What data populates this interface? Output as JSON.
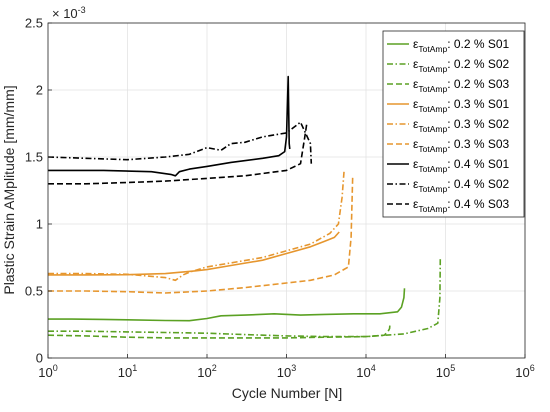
{
  "chart_data": {
    "type": "line",
    "title": "",
    "xlabel": "Cycle Number [N]",
    "ylabel": "Plastic Strain AMplitude [mm/mm]",
    "x_scale": "log",
    "xlim": [
      1,
      1000000
    ],
    "ylim": [
      0,
      0.0025
    ],
    "x_ticks": [
      1,
      10,
      100,
      1000,
      10000,
      100000,
      1000000
    ],
    "x_tick_labels": [
      {
        "base": "10",
        "exp": "0"
      },
      {
        "base": "10",
        "exp": "1"
      },
      {
        "base": "10",
        "exp": "2"
      },
      {
        "base": "10",
        "exp": "3"
      },
      {
        "base": "10",
        "exp": "4"
      },
      {
        "base": "10",
        "exp": "5"
      },
      {
        "base": "10",
        "exp": "6"
      }
    ],
    "y_ticks": [
      0,
      0.0005,
      0.001,
      0.0015,
      0.002,
      0.0025
    ],
    "y_tick_labels": [
      "0",
      "0.5",
      "1",
      "1.5",
      "2",
      "2.5"
    ],
    "y_multiplier": {
      "base": "× 10",
      "exp": "-3"
    },
    "grid": true,
    "legend_position": "top-right",
    "legend_symbol": "ε",
    "legend_subscript": "TotAmp",
    "series": [
      {
        "name": ": 0.2 % S01",
        "color": "#5ba123",
        "dash": "solid",
        "x": [
          1,
          2,
          5,
          10,
          30,
          60,
          100,
          150,
          300,
          700,
          1500,
          3000,
          7000,
          15000,
          25000,
          28000,
          30000,
          30500
        ],
        "y": [
          0.00029,
          0.00029,
          0.000288,
          0.000285,
          0.00028,
          0.000278,
          0.000295,
          0.000315,
          0.00032,
          0.00033,
          0.00032,
          0.000325,
          0.00033,
          0.00033,
          0.000345,
          0.00038,
          0.00045,
          0.00052
        ]
      },
      {
        "name": ": 0.2 % S02",
        "color": "#5ba123",
        "dash": "dashdot",
        "x": [
          1,
          3,
          10,
          30,
          100,
          300,
          1000,
          3000,
          10000,
          30000,
          60000,
          80000,
          85000,
          86000
        ],
        "y": [
          0.0002,
          0.0002,
          0.000195,
          0.00019,
          0.000185,
          0.000175,
          0.000165,
          0.00016,
          0.00016,
          0.00018,
          0.00022,
          0.00026,
          0.00045,
          0.00075
        ]
      },
      {
        "name": ": 0.2 % S03",
        "color": "#5ba123",
        "dash": "dashed",
        "x": [
          1,
          3,
          10,
          30,
          100,
          300,
          1000,
          3000,
          10000,
          17000,
          19000,
          19800,
          20000
        ],
        "y": [
          0.00017,
          0.000165,
          0.000155,
          0.00015,
          0.00015,
          0.00015,
          0.00015,
          0.000155,
          0.00016,
          0.00017,
          0.0002,
          0.00022,
          0.00025
        ]
      },
      {
        "name": ": 0.3 % S01",
        "color": "#e6962e",
        "dash": "solid",
        "x": [
          1,
          3,
          10,
          30,
          70,
          100,
          200,
          500,
          1000,
          2000,
          3000,
          4000,
          4600
        ],
        "y": [
          0.00062,
          0.00062,
          0.000622,
          0.00063,
          0.00065,
          0.00066,
          0.00069,
          0.00073,
          0.00078,
          0.00083,
          0.00087,
          0.0009,
          0.00094
        ]
      },
      {
        "name": ": 0.3 % S02",
        "color": "#e6962e",
        "dash": "dashdot",
        "x": [
          1,
          3,
          10,
          30,
          40,
          50,
          60,
          100,
          200,
          500,
          1000,
          2000,
          3500,
          4500,
          5000,
          5300
        ],
        "y": [
          0.00063,
          0.00063,
          0.000625,
          0.0006,
          0.00058,
          0.00062,
          0.00064,
          0.00068,
          0.00071,
          0.00075,
          0.0008,
          0.00085,
          0.00093,
          0.001,
          0.0012,
          0.0014
        ]
      },
      {
        "name": ": 0.3 % S03",
        "color": "#e6962e",
        "dash": "dashed",
        "x": [
          1,
          3,
          10,
          30,
          100,
          300,
          1000,
          2000,
          4000,
          6000,
          6500,
          6800
        ],
        "y": [
          0.0005,
          0.0005,
          0.000495,
          0.000485,
          0.0005,
          0.000525,
          0.00056,
          0.00058,
          0.00062,
          0.00068,
          0.0009,
          0.00136
        ]
      },
      {
        "name": ": 0.4 % S01",
        "color": "#000000",
        "dash": "solid",
        "x": [
          1,
          5,
          20,
          35,
          40,
          45,
          60,
          100,
          200,
          500,
          800,
          950,
          1000,
          1050,
          1080,
          1100
        ],
        "y": [
          0.0014,
          0.0014,
          0.00139,
          0.00137,
          0.00136,
          0.00139,
          0.00141,
          0.00143,
          0.00146,
          0.00149,
          0.00151,
          0.00154,
          0.00165,
          0.0021,
          0.0016,
          0.00156
        ]
      },
      {
        "name": ": 0.4 % S02",
        "color": "#000000",
        "dash": "dashdot",
        "x": [
          1,
          3,
          10,
          30,
          60,
          100,
          150,
          200,
          300,
          500,
          1000,
          1500,
          2000,
          2050
        ],
        "y": [
          0.0015,
          0.00149,
          0.00148,
          0.0015,
          0.00152,
          0.00157,
          0.00155,
          0.0016,
          0.00161,
          0.00165,
          0.00168,
          0.00176,
          0.0016,
          0.00145
        ]
      },
      {
        "name": ": 0.4 % S03",
        "color": "#000000",
        "dash": "dashed",
        "x": [
          1,
          3,
          10,
          30,
          100,
          300,
          1000,
          1500,
          1700,
          1800
        ],
        "y": [
          0.0013,
          0.0013,
          0.00131,
          0.00132,
          0.00134,
          0.00136,
          0.0014,
          0.00145,
          0.00165,
          0.00175
        ]
      }
    ]
  }
}
